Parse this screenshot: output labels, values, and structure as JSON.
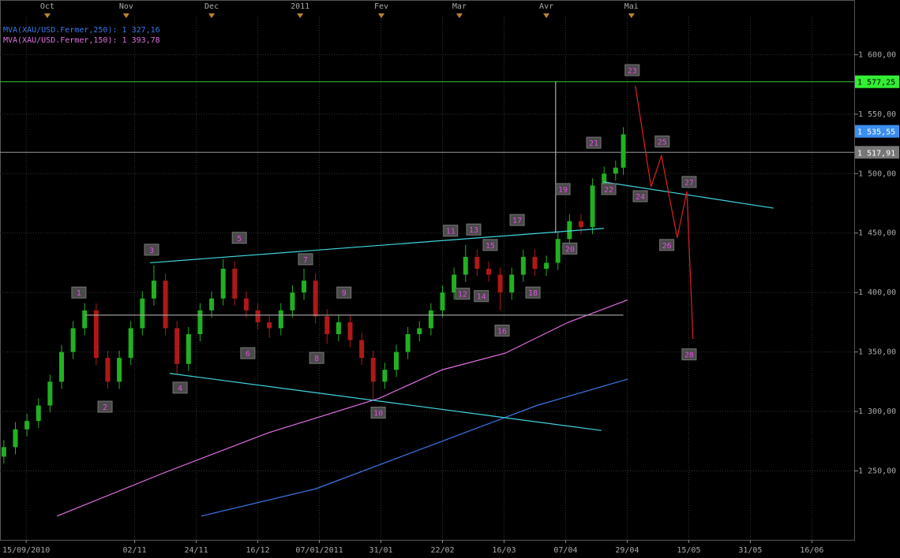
{
  "chart_data": {
    "type": "candlestick",
    "xlim": [
      0,
      222
    ],
    "ylim": [
      1192,
      1646
    ],
    "yticks": [
      {
        "value": 1250,
        "label": "1 250,00"
      },
      {
        "value": 1300,
        "label": "1 300,00"
      },
      {
        "value": 1350,
        "label": "1 350,00"
      },
      {
        "value": 1400,
        "label": "1 400,00"
      },
      {
        "value": 1450,
        "label": "1 450,00"
      },
      {
        "value": 1500,
        "label": "1 500,00"
      },
      {
        "value": 1550,
        "label": "1 550,00"
      },
      {
        "value": 1600,
        "label": "1 600,00"
      }
    ],
    "xticks": [
      {
        "value": 6.8,
        "label": "15/09/2010"
      },
      {
        "value": 35,
        "label": "02/11"
      },
      {
        "value": 51,
        "label": "24/11"
      },
      {
        "value": 67,
        "label": "16/12"
      },
      {
        "value": 83,
        "label": "07/01/2011"
      },
      {
        "value": 99,
        "label": "31/01"
      },
      {
        "value": 115,
        "label": "22/02"
      },
      {
        "value": 131,
        "label": "16/03"
      },
      {
        "value": 147,
        "label": "07/04"
      },
      {
        "value": 163,
        "label": "29/04"
      },
      {
        "value": 179,
        "label": "15/05"
      },
      {
        "value": 195,
        "label": "31/05"
      },
      {
        "value": 211,
        "label": "16/06"
      }
    ],
    "top_ticks": [
      {
        "value": 12.3,
        "label": "Oct"
      },
      {
        "value": 32.8,
        "label": "Nov"
      },
      {
        "value": 55,
        "label": "Dec"
      },
      {
        "value": 78,
        "label": "2011"
      },
      {
        "value": 99.1,
        "label": "Fev"
      },
      {
        "value": 119.4,
        "label": "Mar"
      },
      {
        "value": 142,
        "label": "Avr"
      },
      {
        "value": 164.1,
        "label": "Mai"
      }
    ],
    "grid": true,
    "up_color": "#22b022",
    "down_color": "#b01818",
    "candles": {
      "x": [
        1,
        4,
        7,
        10,
        13,
        16,
        19,
        22,
        25,
        28,
        31,
        34,
        37,
        40,
        43,
        46,
        49,
        52,
        55,
        58,
        61,
        64,
        67,
        70,
        73,
        76,
        79,
        82,
        85,
        88,
        91,
        94,
        97,
        100,
        103,
        106,
        109,
        112,
        115,
        118,
        121,
        124,
        127,
        130,
        133,
        136,
        139,
        142,
        145,
        148,
        151,
        154,
        157,
        160,
        162
      ],
      "open": [
        1262,
        1270,
        1285,
        1292,
        1305,
        1325,
        1350,
        1370,
        1385,
        1345,
        1325,
        1345,
        1370,
        1395,
        1410,
        1370,
        1340,
        1365,
        1385,
        1395,
        1420,
        1395,
        1385,
        1375,
        1370,
        1385,
        1400,
        1410,
        1380,
        1365,
        1375,
        1360,
        1345,
        1325,
        1335,
        1350,
        1365,
        1370,
        1385,
        1400,
        1415,
        1430,
        1420,
        1415,
        1400,
        1415,
        1430,
        1420,
        1425,
        1445,
        1460,
        1455,
        1490,
        1500,
        1505
      ],
      "high": [
        1276,
        1291,
        1298,
        1311,
        1331,
        1356,
        1376,
        1391,
        1391,
        1351,
        1351,
        1376,
        1401,
        1423,
        1416,
        1376,
        1371,
        1391,
        1401,
        1428,
        1426,
        1401,
        1391,
        1381,
        1391,
        1406,
        1420,
        1416,
        1386,
        1381,
        1381,
        1366,
        1351,
        1341,
        1356,
        1371,
        1376,
        1391,
        1406,
        1421,
        1440,
        1436,
        1426,
        1421,
        1421,
        1436,
        1436,
        1431,
        1451,
        1466,
        1466,
        1496,
        1506,
        1511,
        1539
      ],
      "low": [
        1256,
        1264,
        1279,
        1286,
        1299,
        1319,
        1344,
        1364,
        1339,
        1319,
        1319,
        1339,
        1364,
        1389,
        1364,
        1331,
        1334,
        1359,
        1379,
        1389,
        1389,
        1379,
        1369,
        1362,
        1364,
        1379,
        1394,
        1374,
        1357,
        1359,
        1354,
        1339,
        1310,
        1319,
        1329,
        1344,
        1359,
        1364,
        1379,
        1394,
        1409,
        1414,
        1409,
        1385,
        1394,
        1409,
        1414,
        1414,
        1419,
        1439,
        1449,
        1449,
        1484,
        1494,
        1499
      ],
      "close": [
        1270,
        1285,
        1292,
        1305,
        1325,
        1350,
        1370,
        1385,
        1345,
        1325,
        1345,
        1370,
        1395,
        1410,
        1370,
        1340,
        1365,
        1385,
        1395,
        1420,
        1395,
        1385,
        1375,
        1370,
        1385,
        1400,
        1410,
        1380,
        1365,
        1375,
        1360,
        1345,
        1325,
        1335,
        1350,
        1365,
        1370,
        1385,
        1400,
        1415,
        1430,
        1420,
        1415,
        1400,
        1415,
        1430,
        1420,
        1425,
        1445,
        1460,
        1455,
        1490,
        1500,
        1505,
        1533
      ]
    },
    "series": [
      {
        "name": "MVA(XAU/USD.Fermer,250):",
        "last_label": "1 327,16",
        "color": "#3a78e8",
        "x": [
          52.3,
          82.1,
          114.9,
          139.5,
          163.1
        ],
        "values": [
          1212,
          1235,
          1275,
          1305,
          1327.16
        ]
      },
      {
        "name": "MVA(XAU/USD.Fermer,150):",
        "last_label": "1 393,78",
        "color": "#e070e0",
        "x": [
          14.8,
          43.1,
          69.7,
          98.5,
          114.9,
          131.3,
          147.7,
          163.1
        ],
        "values": [
          1212,
          1249,
          1282,
          1311,
          1335,
          1349,
          1375,
          1393.78
        ]
      }
    ],
    "hlines": [
      {
        "value": 1577.25,
        "color": "#33cc33"
      },
      {
        "value": 1517.91,
        "color": "#999999"
      }
    ],
    "price_tags": [
      {
        "value": 1577.25,
        "label": "1 577,25",
        "color": "#33ee33"
      },
      {
        "value": 1535.55,
        "label": "1 535,55",
        "color": "#3a8ef0"
      },
      {
        "value": 1517.91,
        "label": "1 517,91",
        "color": "#777777"
      }
    ],
    "drawings": [
      {
        "color": "#40d8e0",
        "x": [
          39,
          157
        ],
        "values": [
          1425,
          1454
        ]
      },
      {
        "color": "#40d8e0",
        "x": [
          44.1,
          156.3
        ],
        "values": [
          1332,
          1284
        ]
      },
      {
        "color": "#40d8e0",
        "x": [
          156.9,
          201
        ],
        "values": [
          1493,
          1471
        ]
      },
      {
        "color": "#e02020",
        "x": [
          165.1,
          169.2,
          171.9,
          176,
          178.5,
          180.1
        ],
        "values": [
          1574,
          1489,
          1515,
          1446,
          1485,
          1361
        ]
      },
      {
        "color": "#aaaaaa",
        "x": [
          144.4,
          144.4
        ],
        "values": [
          1577.25,
          1450
        ]
      },
      {
        "color": "#aaaaaa",
        "x": [
          22.2,
          162
        ],
        "values": [
          1381,
          1381
        ]
      }
    ],
    "annotations": [
      {
        "label": "1",
        "x": 20.5,
        "value": 1400
      },
      {
        "label": "2",
        "x": 27.3,
        "value": 1304
      },
      {
        "label": "3",
        "x": 39.4,
        "value": 1436
      },
      {
        "label": "4",
        "x": 46.8,
        "value": 1320
      },
      {
        "label": "5",
        "x": 62.2,
        "value": 1446
      },
      {
        "label": "6",
        "x": 64.4,
        "value": 1349
      },
      {
        "label": "7",
        "x": 79.4,
        "value": 1428
      },
      {
        "label": "8",
        "x": 82.3,
        "value": 1345
      },
      {
        "label": "9",
        "x": 89.4,
        "value": 1400
      },
      {
        "label": "10",
        "x": 98.3,
        "value": 1299
      },
      {
        "label": "11",
        "x": 117.1,
        "value": 1452
      },
      {
        "label": "12",
        "x": 120.2,
        "value": 1399
      },
      {
        "label": "13",
        "x": 123.1,
        "value": 1453
      },
      {
        "label": "14",
        "x": 125.1,
        "value": 1397
      },
      {
        "label": "15",
        "x": 127.4,
        "value": 1440
      },
      {
        "label": "16",
        "x": 130.5,
        "value": 1368
      },
      {
        "label": "17",
        "x": 134.4,
        "value": 1461
      },
      {
        "label": "18",
        "x": 138.5,
        "value": 1400
      },
      {
        "label": "19",
        "x": 146.3,
        "value": 1487
      },
      {
        "label": "20",
        "x": 148.1,
        "value": 1437
      },
      {
        "label": "21",
        "x": 154.3,
        "value": 1526
      },
      {
        "label": "22",
        "x": 158.2,
        "value": 1487
      },
      {
        "label": "23",
        "x": 164.3,
        "value": 1587
      },
      {
        "label": "24",
        "x": 166.4,
        "value": 1481
      },
      {
        "label": "25",
        "x": 172.1,
        "value": 1527
      },
      {
        "label": "26",
        "x": 173.3,
        "value": 1440
      },
      {
        "label": "27",
        "x": 179.1,
        "value": 1493
      },
      {
        "label": "28",
        "x": 179.1,
        "value": 1348
      }
    ]
  }
}
